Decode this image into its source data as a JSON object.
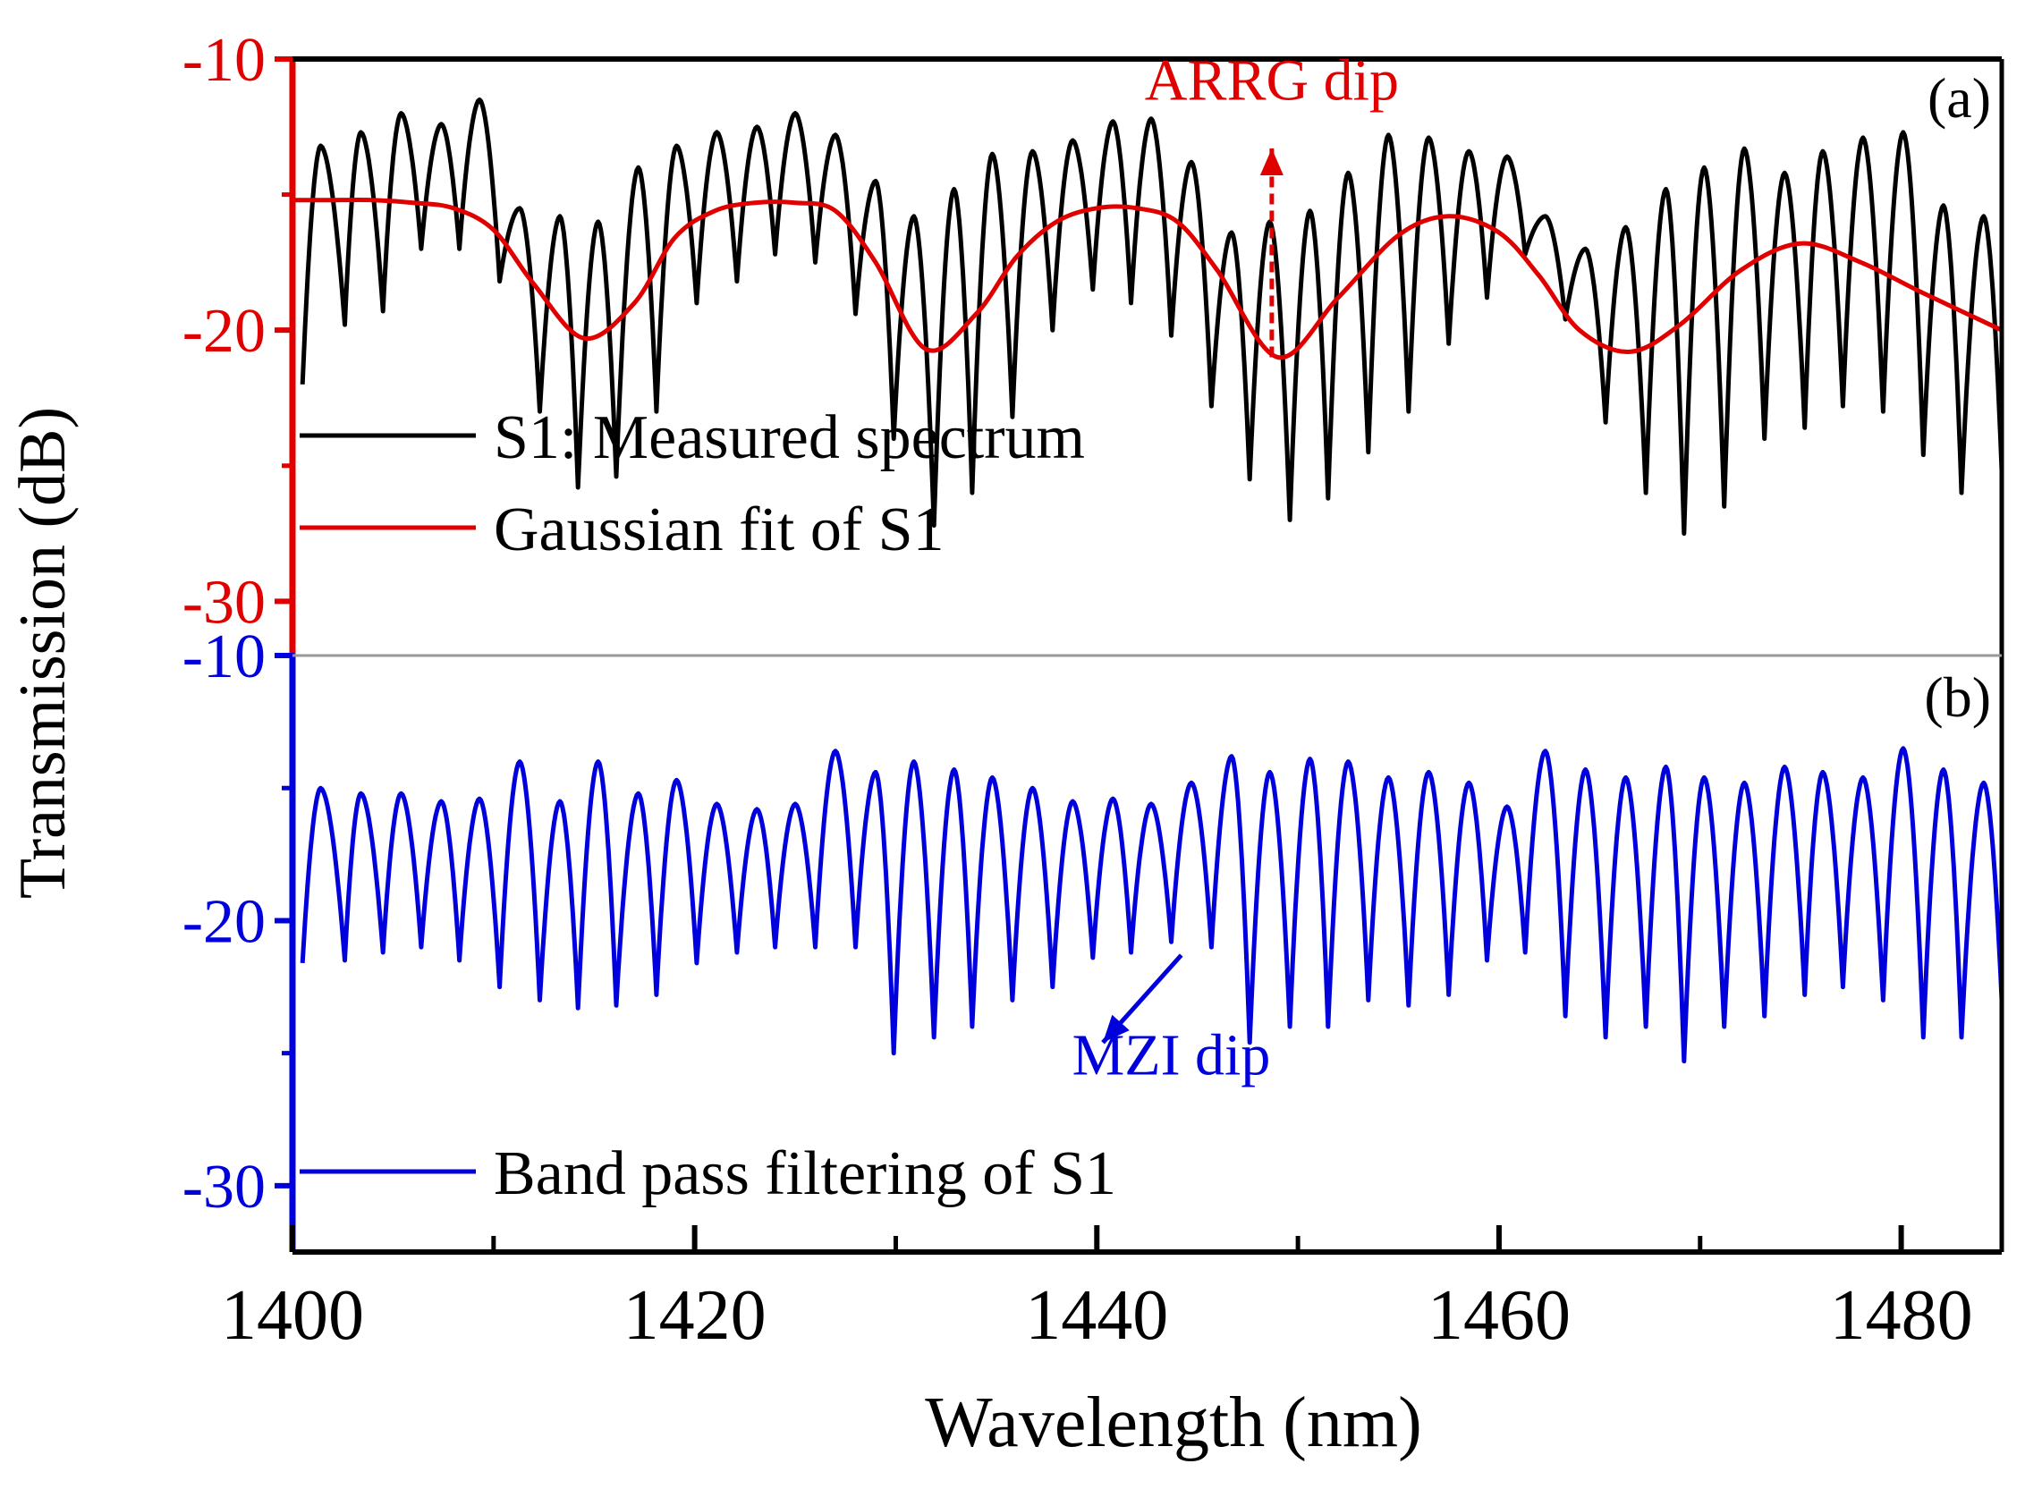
{
  "figure": {
    "ylabel": "Transmission (dB)",
    "xlabel": "Wavelength (nm)"
  },
  "chart_data": [
    {
      "type": "line",
      "panel_label": "(a)",
      "xlim": [
        1400,
        1485
      ],
      "ylim": [
        -32,
        -10
      ],
      "xticks": [
        1400,
        1420,
        1440,
        1460,
        1480
      ],
      "yticks": [
        -10,
        -20,
        -30
      ],
      "axis_color": "#e00000",
      "legend_placement": "bottom-left",
      "series": [
        {
          "name": "S1: Measured spectrum",
          "color": "#000000",
          "kind": "oscillation",
          "dips_x": [
            1400.5,
            1402.6,
            1404.5,
            1406.4,
            1408.3,
            1410.3,
            1412.3,
            1414.2,
            1416.1,
            1418.1,
            1420.1,
            1422.1,
            1424.0,
            1426.0,
            1428.0,
            1429.9,
            1431.9,
            1433.8,
            1435.8,
            1437.8,
            1439.8,
            1441.7,
            1443.7,
            1445.7,
            1447.6,
            1449.6,
            1451.5,
            1453.5,
            1455.5,
            1457.5,
            1459.4,
            1461.3,
            1463.3,
            1465.3,
            1467.3,
            1469.2,
            1471.2,
            1473.2,
            1475.2,
            1477.1,
            1479.1,
            1481.1,
            1483.0,
            1485.0
          ],
          "dips_y": [
            -22.0,
            -19.8,
            -19.3,
            -17.0,
            -17.0,
            -18.2,
            -23.0,
            -25.8,
            -25.4,
            -23.0,
            -19.0,
            -18.2,
            -17.2,
            -17.5,
            -19.4,
            -24.0,
            -27.2,
            -26.0,
            -23.2,
            -20.0,
            -18.5,
            -19.0,
            -20.2,
            -22.8,
            -25.5,
            -27.0,
            -26.2,
            -24.5,
            -23.0,
            -20.5,
            -18.8,
            -17.2,
            -19.6,
            -23.4,
            -26.0,
            -27.5,
            -26.5,
            -24.0,
            -23.6,
            -22.8,
            -23.0,
            -24.6,
            -26.0,
            -25.2
          ],
          "peaks_x": [
            1401.4,
            1403.4,
            1405.4,
            1407.4,
            1409.3,
            1411.3,
            1413.3,
            1415.2,
            1417.2,
            1419.1,
            1421.1,
            1423.1,
            1425.0,
            1427.0,
            1429.0,
            1430.9,
            1432.9,
            1434.8,
            1436.8,
            1438.8,
            1440.8,
            1442.7,
            1444.7,
            1446.7,
            1448.6,
            1450.6,
            1452.5,
            1454.5,
            1456.5,
            1458.5,
            1460.4,
            1462.3,
            1464.3,
            1466.3,
            1468.3,
            1470.2,
            1472.2,
            1474.2,
            1476.1,
            1478.1,
            1480.1,
            1482.1,
            1484.1
          ],
          "peaks_y": [
            -13.2,
            -12.7,
            -12.0,
            -12.4,
            -11.5,
            -15.5,
            -15.8,
            -16.0,
            -14.0,
            -13.2,
            -12.7,
            -12.5,
            -12.0,
            -12.8,
            -14.5,
            -15.8,
            -14.8,
            -13.5,
            -13.4,
            -13.0,
            -12.3,
            -12.2,
            -13.8,
            -16.4,
            -16.0,
            -15.6,
            -14.2,
            -12.8,
            -12.9,
            -13.4,
            -13.6,
            -15.8,
            -17.0,
            -16.2,
            -14.8,
            -14.0,
            -13.3,
            -14.2,
            -13.4,
            -12.9,
            -12.7,
            -15.4,
            -15.8
          ]
        },
        {
          "name": "Gaussian fit of S1",
          "color": "#e00000",
          "kind": "smooth",
          "x": [
            1400,
            1402,
            1404,
            1406,
            1408,
            1410,
            1412,
            1414.5,
            1417,
            1419,
            1421,
            1423,
            1425,
            1427,
            1429,
            1431.5,
            1434,
            1436,
            1438,
            1440,
            1442,
            1444,
            1446,
            1449,
            1452,
            1455,
            1457.5,
            1460,
            1462,
            1464,
            1466.5,
            1469,
            1472,
            1475,
            1478,
            1481,
            1485
          ],
          "y": [
            -15.2,
            -15.2,
            -15.2,
            -15.3,
            -15.5,
            -16.3,
            -18.3,
            -20.3,
            -19.0,
            -16.6,
            -15.6,
            -15.3,
            -15.3,
            -15.6,
            -17.5,
            -20.7,
            -19.4,
            -17.3,
            -16.0,
            -15.5,
            -15.5,
            -16.0,
            -17.8,
            -21.0,
            -18.8,
            -16.5,
            -15.8,
            -16.4,
            -18.0,
            -20.0,
            -20.8,
            -19.8,
            -17.8,
            -16.8,
            -17.5,
            -18.6,
            -20.0
          ]
        }
      ],
      "annotations": [
        {
          "text": "ARRG dip",
          "x": 1448.7,
          "y": -11.5,
          "color": "#e00000",
          "arrow_from": [
            1448.7,
            -21.0
          ],
          "arrow_to": [
            1448.7,
            -13.3
          ]
        }
      ]
    },
    {
      "type": "line",
      "panel_label": "(b)",
      "xlim": [
        1400,
        1485
      ],
      "ylim": [
        -32.5,
        -10
      ],
      "xticks": [
        1400,
        1420,
        1440,
        1460,
        1480
      ],
      "yticks": [
        -10,
        -20,
        -30
      ],
      "axis_color": "#0000dd",
      "legend_placement": "bottom-left",
      "series": [
        {
          "name": "Band pass filtering of S1",
          "color": "#0000dd",
          "kind": "oscillation",
          "dips_x": [
            1400.5,
            1402.6,
            1404.5,
            1406.4,
            1408.3,
            1410.3,
            1412.3,
            1414.2,
            1416.1,
            1418.1,
            1420.1,
            1422.1,
            1424.0,
            1426.0,
            1428.0,
            1429.9,
            1431.9,
            1433.8,
            1435.8,
            1437.8,
            1439.8,
            1441.7,
            1443.7,
            1445.7,
            1447.6,
            1449.6,
            1451.5,
            1453.5,
            1455.5,
            1457.5,
            1459.4,
            1461.3,
            1463.3,
            1465.3,
            1467.3,
            1469.2,
            1471.2,
            1473.2,
            1475.2,
            1477.1,
            1479.1,
            1481.1,
            1483.0,
            1485.0
          ],
          "dips_y": [
            -21.6,
            -21.5,
            -21.2,
            -21.0,
            -21.5,
            -22.5,
            -23.0,
            -23.3,
            -23.2,
            -22.8,
            -21.6,
            -21.2,
            -21.0,
            -21.0,
            -21.0,
            -25.0,
            -24.4,
            -24.0,
            -23.0,
            -22.5,
            -21.4,
            -21.2,
            -20.8,
            -21.0,
            -24.6,
            -24.0,
            -24.0,
            -23.0,
            -23.2,
            -22.8,
            -21.5,
            -21.2,
            -23.6,
            -24.4,
            -24.0,
            -25.3,
            -24.0,
            -23.6,
            -22.8,
            -22.5,
            -23.0,
            -24.4,
            -24.4,
            -23.0
          ],
          "peaks_x": [
            1401.4,
            1403.4,
            1405.4,
            1407.4,
            1409.3,
            1411.3,
            1413.3,
            1415.2,
            1417.2,
            1419.1,
            1421.1,
            1423.1,
            1425.0,
            1427.0,
            1429.0,
            1430.9,
            1432.9,
            1434.8,
            1436.8,
            1438.8,
            1440.8,
            1442.7,
            1444.7,
            1446.7,
            1448.6,
            1450.6,
            1452.5,
            1454.5,
            1456.5,
            1458.5,
            1460.4,
            1462.3,
            1464.3,
            1466.3,
            1468.3,
            1470.2,
            1472.2,
            1474.2,
            1476.1,
            1478.1,
            1480.1,
            1482.1,
            1484.1
          ],
          "peaks_y": [
            -15.0,
            -15.2,
            -15.2,
            -15.5,
            -15.4,
            -14.0,
            -15.5,
            -14.0,
            -15.2,
            -14.7,
            -15.6,
            -15.8,
            -15.6,
            -13.6,
            -14.4,
            -14.0,
            -14.3,
            -14.6,
            -15.0,
            -15.5,
            -15.4,
            -15.6,
            -14.8,
            -13.8,
            -14.4,
            -13.9,
            -14.0,
            -14.6,
            -14.4,
            -14.8,
            -15.7,
            -13.6,
            -14.3,
            -14.6,
            -14.2,
            -14.6,
            -14.8,
            -14.2,
            -14.4,
            -14.6,
            -13.5,
            -14.3,
            -14.8
          ]
        }
      ],
      "annotations": [
        {
          "text": "MZI dip",
          "x": 1443.7,
          "y": -25.8,
          "color": "#0000dd",
          "arrow_from": [
            1444.2,
            -21.3
          ],
          "arrow_to": [
            1440.3,
            -24.6
          ]
        }
      ]
    }
  ]
}
